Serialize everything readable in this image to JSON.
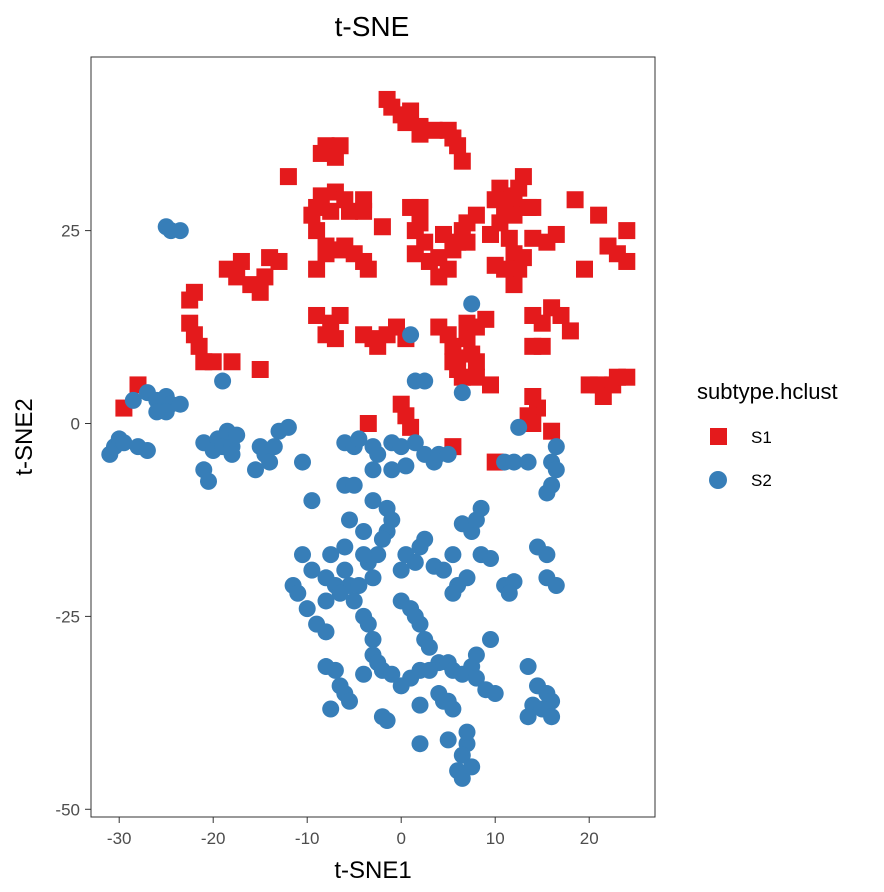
{
  "chart_data": {
    "type": "scatter",
    "title": "t-SNE",
    "xlabel": "t-SNE1",
    "ylabel": "t-SNE2",
    "xlim": [
      -33,
      27
    ],
    "ylim": [
      -51,
      47.5
    ],
    "xticks": [
      -30,
      -20,
      -10,
      0,
      10,
      20
    ],
    "yticks": [
      -50,
      -25,
      0,
      25
    ],
    "xtick_labels": [
      "-30",
      "-20",
      "-10",
      "0",
      "10",
      "20"
    ],
    "ytick_labels": [
      "-50",
      "-25",
      "0",
      "25"
    ],
    "grid": false,
    "legend": {
      "title": "subtype.hclust",
      "position": "right"
    },
    "series": [
      {
        "name": "S1",
        "marker": "square",
        "color": "#E41A1C",
        "points": [
          [
            -1.5,
            42
          ],
          [
            -1,
            41
          ],
          [
            0,
            40
          ],
          [
            1,
            40.5
          ],
          [
            0.5,
            39
          ],
          [
            2,
            38.5
          ],
          [
            2,
            37.5
          ],
          [
            3.5,
            38
          ],
          [
            5,
            38
          ],
          [
            5.5,
            37
          ],
          [
            6,
            36
          ],
          [
            6.5,
            34
          ],
          [
            -8,
            36
          ],
          [
            -8.5,
            35
          ],
          [
            -7,
            34.5
          ],
          [
            -6.5,
            36
          ],
          [
            -12,
            32
          ],
          [
            -9,
            28
          ],
          [
            -8.5,
            29.5
          ],
          [
            -7,
            30
          ],
          [
            -6,
            29
          ],
          [
            -5.5,
            27.5
          ],
          [
            -4,
            29
          ],
          [
            -4,
            27.5
          ],
          [
            -9.5,
            27
          ],
          [
            -7.5,
            27.5
          ],
          [
            -9,
            25
          ],
          [
            -8,
            23
          ],
          [
            -6.5,
            22.5
          ],
          [
            -6,
            23
          ],
          [
            -5,
            22
          ],
          [
            -4,
            21
          ],
          [
            -3.5,
            20
          ],
          [
            -9,
            20
          ],
          [
            -8,
            22
          ],
          [
            -2,
            25.5
          ],
          [
            1,
            28
          ],
          [
            2,
            28
          ],
          [
            2,
            26
          ],
          [
            1.5,
            25
          ],
          [
            1.5,
            22
          ],
          [
            2.5,
            23.5
          ],
          [
            3,
            21
          ],
          [
            4,
            21.5
          ],
          [
            5,
            20
          ],
          [
            5.5,
            22.5
          ],
          [
            6,
            23.5
          ],
          [
            7,
            23.5
          ],
          [
            6.5,
            25
          ],
          [
            7,
            26
          ],
          [
            8,
            27
          ],
          [
            4.5,
            24.5
          ],
          [
            4,
            19
          ],
          [
            10.5,
            30.5
          ],
          [
            11.5,
            29.5
          ],
          [
            12.5,
            30.5
          ],
          [
            13,
            32
          ],
          [
            12,
            29
          ],
          [
            13.5,
            28
          ],
          [
            14,
            28
          ],
          [
            11,
            28
          ],
          [
            10,
            29
          ],
          [
            12,
            27
          ],
          [
            9.5,
            24.5
          ],
          [
            10.5,
            26
          ],
          [
            11.5,
            24
          ],
          [
            12,
            22
          ],
          [
            13,
            21.5
          ],
          [
            12.5,
            20
          ],
          [
            12,
            18
          ],
          [
            11,
            20
          ],
          [
            10,
            20.5
          ],
          [
            14,
            24
          ],
          [
            15.5,
            23.5
          ],
          [
            16.5,
            24.5
          ],
          [
            18.5,
            29
          ],
          [
            21,
            27
          ],
          [
            19.5,
            20
          ],
          [
            22,
            23
          ],
          [
            23,
            22
          ],
          [
            24,
            21
          ],
          [
            24,
            25
          ],
          [
            -22,
            17
          ],
          [
            -22.5,
            16
          ],
          [
            -22.5,
            13
          ],
          [
            -22,
            11.5
          ],
          [
            -21.5,
            10
          ],
          [
            -21,
            8
          ],
          [
            -20,
            8
          ],
          [
            -18,
            8
          ],
          [
            -15,
            7
          ],
          [
            -17,
            21
          ],
          [
            -18.5,
            20
          ],
          [
            -17.5,
            19
          ],
          [
            -16,
            18
          ],
          [
            -15,
            17
          ],
          [
            -14.5,
            19
          ],
          [
            -13,
            21
          ],
          [
            -14,
            21.5
          ],
          [
            -9,
            14
          ],
          [
            -8,
            11.5
          ],
          [
            -7,
            11
          ],
          [
            -6.5,
            14
          ],
          [
            -7.5,
            13
          ],
          [
            -4,
            11.5
          ],
          [
            -3,
            11
          ],
          [
            -2.5,
            10
          ],
          [
            -1.5,
            11.5
          ],
          [
            -0.5,
            12.5
          ],
          [
            0.5,
            11
          ],
          [
            4,
            12.5
          ],
          [
            5,
            11.5
          ],
          [
            5.5,
            10
          ],
          [
            5.5,
            8
          ],
          [
            6,
            8.5
          ],
          [
            6,
            7
          ],
          [
            7,
            13
          ],
          [
            7,
            11
          ],
          [
            7.5,
            9
          ],
          [
            8,
            8
          ],
          [
            8,
            6
          ],
          [
            9,
            13.5
          ],
          [
            8,
            12.5
          ],
          [
            9.5,
            5
          ],
          [
            6.5,
            6
          ],
          [
            14,
            14
          ],
          [
            15,
            13
          ],
          [
            16,
            15
          ],
          [
            17,
            14
          ],
          [
            18,
            12
          ],
          [
            15,
            10
          ],
          [
            14,
            10
          ],
          [
            20,
            5
          ],
          [
            21,
            5
          ],
          [
            21.5,
            3.5
          ],
          [
            22.5,
            5
          ],
          [
            23,
            6
          ],
          [
            24,
            6
          ],
          [
            -29.5,
            2
          ],
          [
            -28,
            5
          ],
          [
            -3.5,
            0
          ],
          [
            0,
            2.5
          ],
          [
            0.5,
            1
          ],
          [
            1,
            -0.5
          ],
          [
            5.5,
            -3
          ],
          [
            10,
            -5
          ],
          [
            14,
            3.5
          ],
          [
            14.5,
            2
          ],
          [
            13.5,
            1
          ],
          [
            14,
            0
          ],
          [
            16,
            -1
          ]
        ]
      },
      {
        "name": "S2",
        "marker": "circle",
        "color": "#377EB8",
        "points": [
          [
            -25,
            25.5
          ],
          [
            -24.5,
            25
          ],
          [
            -23.5,
            25
          ],
          [
            -19,
            5.5
          ],
          [
            1,
            11.5
          ],
          [
            7.5,
            15.5
          ],
          [
            1.5,
            5.5
          ],
          [
            2.5,
            5.5
          ],
          [
            6.5,
            4
          ],
          [
            -31,
            -4
          ],
          [
            -30.5,
            -3
          ],
          [
            -30,
            -2
          ],
          [
            -29.5,
            -2.5
          ],
          [
            -28,
            -3
          ],
          [
            -27,
            -3.5
          ],
          [
            -27,
            4
          ],
          [
            -26,
            3
          ],
          [
            -25,
            3.5
          ],
          [
            -24.5,
            2.5
          ],
          [
            -23.5,
            2.5
          ],
          [
            -25,
            1.5
          ],
          [
            -26,
            1.5
          ],
          [
            -28.5,
            3
          ],
          [
            -21,
            -2.5
          ],
          [
            -20,
            -3.5
          ],
          [
            -19.5,
            -2
          ],
          [
            -19,
            -3
          ],
          [
            -18,
            -3
          ],
          [
            -18,
            -4
          ],
          [
            -18.5,
            -1
          ],
          [
            -17.5,
            -1.5
          ],
          [
            -21,
            -6
          ],
          [
            -20.5,
            -7.5
          ],
          [
            -15,
            -3
          ],
          [
            -14.5,
            -4
          ],
          [
            -14,
            -5
          ],
          [
            -13.5,
            -3
          ],
          [
            -15.5,
            -6
          ],
          [
            -13,
            -1
          ],
          [
            -12,
            -0.5
          ],
          [
            -10.5,
            -5
          ],
          [
            -6,
            -2.5
          ],
          [
            -5,
            -3
          ],
          [
            -4.5,
            -2
          ],
          [
            -3,
            -3
          ],
          [
            -2.5,
            -4
          ],
          [
            -1,
            -2.5
          ],
          [
            0,
            -3
          ],
          [
            1.5,
            -2.5
          ],
          [
            2.5,
            -4
          ],
          [
            3.5,
            -5
          ],
          [
            4,
            -4
          ],
          [
            5,
            -4
          ],
          [
            -6,
            -8
          ],
          [
            -5,
            -8
          ],
          [
            -3,
            -6
          ],
          [
            -1,
            -6
          ],
          [
            0.5,
            -5.5
          ],
          [
            -9.5,
            -10
          ],
          [
            -3,
            -10
          ],
          [
            -1.5,
            -11
          ],
          [
            -1,
            -12.5
          ],
          [
            -1.5,
            -14
          ],
          [
            -2,
            -15
          ],
          [
            -2.5,
            -17
          ],
          [
            -3.5,
            -18
          ],
          [
            -4,
            -17
          ],
          [
            -4,
            -14
          ],
          [
            -5.5,
            -12.5
          ],
          [
            -6,
            -16
          ],
          [
            -10.5,
            -17
          ],
          [
            -9.5,
            -19
          ],
          [
            -8,
            -20
          ],
          [
            -7.5,
            -17
          ],
          [
            -6,
            -19
          ],
          [
            -5.5,
            -21
          ],
          [
            -4.5,
            -21
          ],
          [
            -3,
            -20
          ],
          [
            -7,
            -21
          ],
          [
            -6.5,
            -22
          ],
          [
            -8,
            -23
          ],
          [
            -11.5,
            -21
          ],
          [
            -11,
            -22
          ],
          [
            -10,
            -24
          ],
          [
            -9,
            -26
          ],
          [
            -8,
            -27
          ],
          [
            -5,
            -23
          ],
          [
            -4,
            -25
          ],
          [
            -3.5,
            -26
          ],
          [
            -3,
            -28
          ],
          [
            0,
            -19
          ],
          [
            0.5,
            -17
          ],
          [
            1.5,
            -18
          ],
          [
            2,
            -16
          ],
          [
            2.5,
            -15
          ],
          [
            3.5,
            -18.5
          ],
          [
            4.5,
            -19
          ],
          [
            5.5,
            -17
          ],
          [
            6.5,
            -13
          ],
          [
            7.5,
            -14
          ],
          [
            8,
            -12.5
          ],
          [
            8.5,
            -11
          ],
          [
            0,
            -23
          ],
          [
            1,
            -24
          ],
          [
            1.5,
            -25
          ],
          [
            2,
            -26
          ],
          [
            2.5,
            -28
          ],
          [
            3,
            -29
          ],
          [
            4,
            -31
          ],
          [
            5,
            -31
          ],
          [
            5.5,
            -32
          ],
          [
            6.5,
            -32.5
          ],
          [
            7.5,
            -31.5
          ],
          [
            8,
            -33
          ],
          [
            6,
            -21
          ],
          [
            5.5,
            -22
          ],
          [
            7,
            -20
          ],
          [
            8.5,
            -17
          ],
          [
            9.5,
            -17.5
          ],
          [
            8,
            -30
          ],
          [
            9.5,
            -28
          ],
          [
            9,
            -34.5
          ],
          [
            10,
            -35
          ],
          [
            -3,
            -30
          ],
          [
            -2.5,
            -31
          ],
          [
            -2,
            -32
          ],
          [
            -1,
            -32.5
          ],
          [
            0,
            -34
          ],
          [
            1,
            -33
          ],
          [
            2,
            -32
          ],
          [
            3,
            -32
          ],
          [
            4,
            -35
          ],
          [
            4.5,
            -36
          ],
          [
            -8,
            -31.5
          ],
          [
            -7,
            -32
          ],
          [
            -6.5,
            -34
          ],
          [
            -6,
            -35
          ],
          [
            -7.5,
            -37
          ],
          [
            -5.5,
            -36
          ],
          [
            -4,
            -32.5
          ],
          [
            -2,
            -38
          ],
          [
            -1.5,
            -38.5
          ],
          [
            2,
            -36.5
          ],
          [
            5,
            -36
          ],
          [
            5.5,
            -37
          ],
          [
            2,
            -41.5
          ],
          [
            5,
            -41
          ],
          [
            7,
            -41.5
          ],
          [
            7,
            -40
          ],
          [
            6.5,
            -43
          ],
          [
            6,
            -45
          ],
          [
            6.5,
            -46
          ],
          [
            7.5,
            -44.5
          ],
          [
            11,
            -5
          ],
          [
            12,
            -5
          ],
          [
            13.5,
            -5
          ],
          [
            12.5,
            -0.5
          ],
          [
            16,
            -5
          ],
          [
            16.5,
            -3
          ],
          [
            16.5,
            -6
          ],
          [
            16,
            -8
          ],
          [
            15.5,
            -9
          ],
          [
            11,
            -21
          ],
          [
            12,
            -20.5
          ],
          [
            11.5,
            -22
          ],
          [
            14.5,
            -16
          ],
          [
            15.5,
            -17
          ],
          [
            15.5,
            -20
          ],
          [
            16.5,
            -21
          ],
          [
            13.5,
            -31.5
          ],
          [
            14.5,
            -34
          ],
          [
            15.5,
            -35
          ],
          [
            16,
            -36
          ],
          [
            14,
            -36.5
          ],
          [
            13.5,
            -38
          ],
          [
            15,
            -37
          ],
          [
            16,
            -38
          ]
        ]
      }
    ]
  }
}
